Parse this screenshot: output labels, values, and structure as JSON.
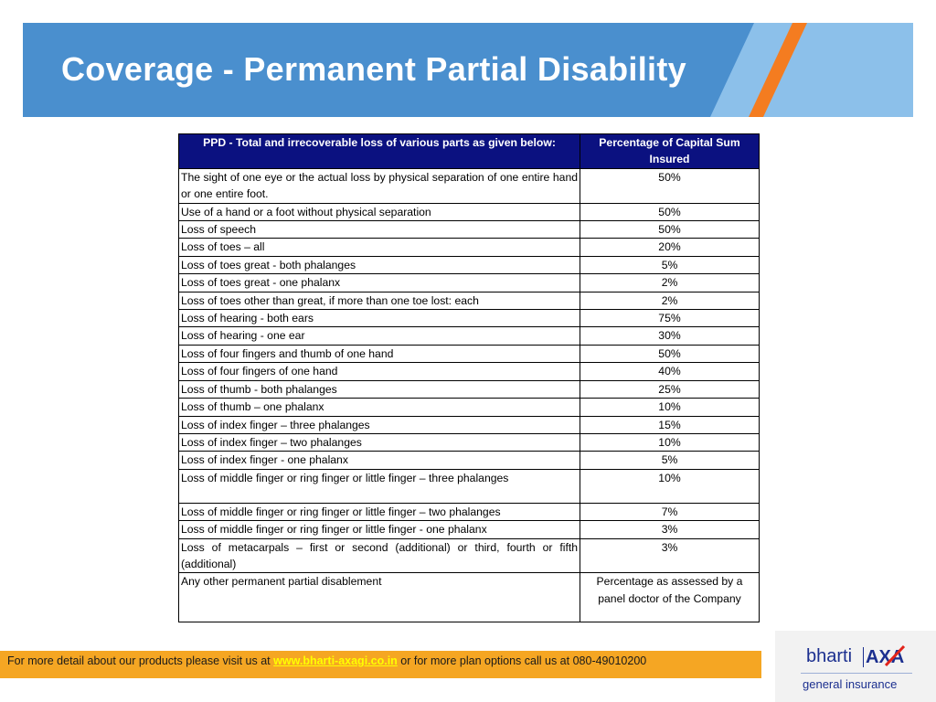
{
  "slide": {
    "title": "Coverage - Permanent Partial Disability"
  },
  "table": {
    "headers": [
      "PPD - Total and irrecoverable loss of various parts as given below:",
      "Percentage of Capital Sum Insured"
    ],
    "rows": [
      {
        "desc": "The sight of one eye or the actual loss by physical separation of one entire hand or one entire foot.",
        "pct": "50%"
      },
      {
        "desc": "Use of a hand or a foot without physical separation",
        "pct": "50%"
      },
      {
        "desc": "Loss of speech",
        "pct": "50%"
      },
      {
        "desc": "Loss of toes – all",
        "pct": "20%"
      },
      {
        "desc": "Loss of toes great - both phalanges",
        "pct": "5%"
      },
      {
        "desc": "Loss of toes great - one phalanx",
        "pct": "2%"
      },
      {
        "desc": "Loss of toes other than great, if more than one toe lost: each",
        "pct": "2%"
      },
      {
        "desc": "Loss of hearing - both ears",
        "pct": "75%"
      },
      {
        "desc": "Loss of hearing - one ear",
        "pct": "30%"
      },
      {
        "desc": "Loss of four fingers and thumb of one hand",
        "pct": "50%"
      },
      {
        "desc": "Loss of four fingers of one hand",
        "pct": "40%"
      },
      {
        "desc": "Loss of thumb - both phalanges",
        "pct": "25%"
      },
      {
        "desc": "Loss of thumb – one phalanx",
        "pct": "10%"
      },
      {
        "desc": "Loss of index finger – three phalanges",
        "pct": "15%"
      },
      {
        "desc": "Loss of index finger – two phalanges",
        "pct": "10%"
      },
      {
        "desc": "Loss of index finger - one phalanx",
        "pct": "5%"
      },
      {
        "desc": "Loss of middle finger or ring finger or little finger – three phalanges",
        "pct": "10%"
      },
      {
        "desc": "Loss of middle finger or ring finger or little finger – two phalanges",
        "pct": "7%"
      },
      {
        "desc": "Loss of middle finger or ring finger or little finger - one phalanx",
        "pct": "3%"
      },
      {
        "desc": "Loss of metacarpals – first or second (additional) or third, fourth or fifth (additional)",
        "pct": "3%"
      },
      {
        "desc": "Any other permanent partial disablement",
        "pct": "Percentage as assessed by a panel doctor of the Company"
      }
    ]
  },
  "footer": {
    "pre_text": "For more detail about our products please visit us at",
    "link_text": "www.bharti-axagi.co.in",
    "post_text": "or for more plan options call us at 080-49010200"
  },
  "logo": {
    "brand": "bharti",
    "partner": "AXA",
    "tagline": "general insurance",
    "colors": {
      "axa_blue": "#1b2f8f",
      "axa_red": "#e2231a",
      "tagline": "#1b2f8f"
    }
  },
  "colors": {
    "header_blue": "#4a8fce",
    "header_light_blue": "#8cc0ea",
    "header_stripe": "#f47c20",
    "table_header": "#0b1180",
    "footer_orange": "#f5a623",
    "link_yellow": "#ffff00"
  }
}
